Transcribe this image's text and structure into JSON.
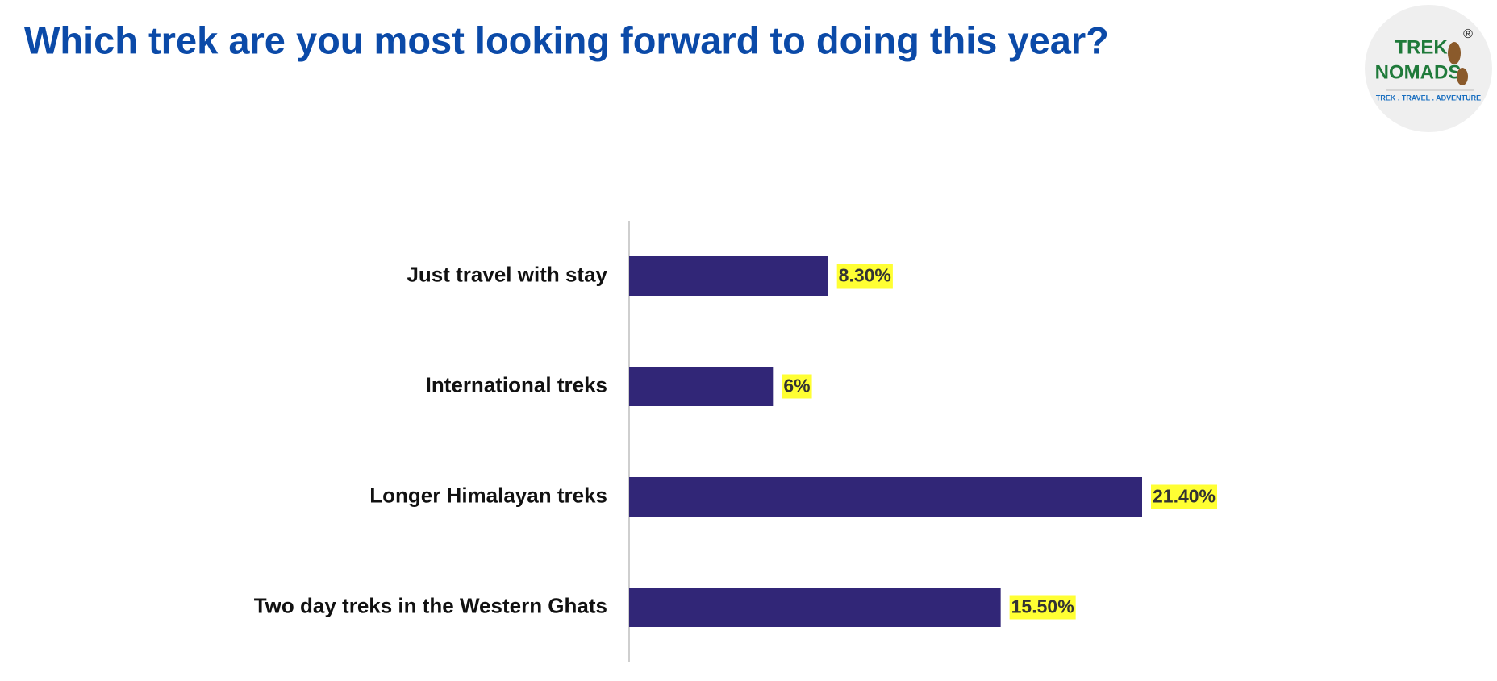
{
  "chart_data": {
    "type": "bar",
    "orientation": "horizontal",
    "title": "Which trek are you most looking forward to doing this year?",
    "categories": [
      "Just travel with stay",
      "International treks",
      "Longer Himalayan treks",
      "Two day treks in the Western Ghats"
    ],
    "values": [
      8.3,
      6,
      21.4,
      15.5
    ],
    "value_labels": [
      "8.30%",
      "6%",
      "21.40%",
      "15.50%"
    ],
    "color": "#312677",
    "label_highlight": "#ffff33"
  },
  "logo": {
    "line1": "TREK",
    "line2": "NOMADS",
    "mark": "®",
    "tagline": "TREK . TRAVEL . ADVENTURE"
  }
}
